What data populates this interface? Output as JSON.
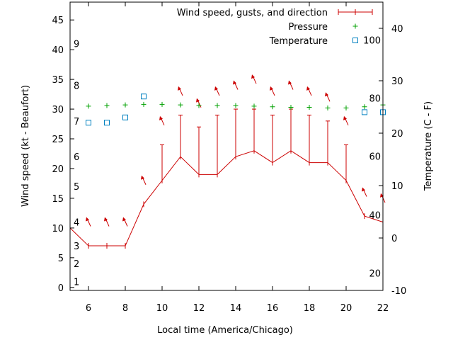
{
  "chart_data": {
    "type": "line",
    "xlabel": "Local time (America/Chicago)",
    "ylabel": "Wind speed (kt - Beaufort)",
    "y2label": "Temperature (C - F)",
    "xlim": [
      5,
      22
    ],
    "ylim": [
      -0.5,
      48
    ],
    "y2lim": [
      -10,
      45
    ],
    "x_ticks": [
      6,
      8,
      10,
      12,
      14,
      16,
      18,
      20,
      22
    ],
    "y_ticks": [
      0,
      5,
      10,
      15,
      20,
      25,
      30,
      35,
      40,
      45
    ],
    "y2_ticks": [
      -10,
      0,
      10,
      20,
      30,
      40
    ],
    "beaufort_labels": [
      {
        "label": "1",
        "kt": 1
      },
      {
        "label": "2",
        "kt": 4
      },
      {
        "label": "3",
        "kt": 7
      },
      {
        "label": "4",
        "kt": 11
      },
      {
        "label": "5",
        "kt": 17
      },
      {
        "label": "6",
        "kt": 22
      },
      {
        "label": "7",
        "kt": 28
      },
      {
        "label": "8",
        "kt": 34
      },
      {
        "label": "9",
        "kt": 41
      }
    ],
    "fahrenheit_labels": [
      {
        "label": "20",
        "celsius": -6.7
      },
      {
        "label": "40",
        "celsius": 4.4
      },
      {
        "label": "60",
        "celsius": 15.6
      },
      {
        "label": "80",
        "celsius": 26.7
      },
      {
        "label": "100",
        "celsius": 37.8
      }
    ],
    "legend": [
      {
        "label": "Wind speed, gusts, and direction",
        "symbol": "errorline",
        "color": "#cc0000"
      },
      {
        "label": "Pressure",
        "symbol": "plus",
        "color": "#00a000"
      },
      {
        "label": "Temperature",
        "symbol": "square",
        "color": "#0080c0"
      }
    ],
    "series": [
      {
        "name": "Wind speed, gusts, and direction",
        "x": [
          5,
          6,
          7,
          8,
          9,
          10,
          11,
          12,
          13,
          14,
          15,
          16,
          17,
          18,
          19,
          20,
          21,
          22
        ],
        "speed": [
          10,
          7,
          7,
          7,
          14,
          18,
          22,
          19,
          19,
          22,
          23,
          21,
          23,
          21,
          21,
          18,
          12,
          11
        ],
        "gust": [
          null,
          null,
          null,
          null,
          null,
          24,
          29,
          27,
          29,
          30,
          30,
          29,
          30,
          29,
          28,
          24,
          null,
          null
        ]
      },
      {
        "name": "Direction arrows",
        "x": [
          6,
          7,
          8,
          9,
          10,
          11,
          12,
          13,
          14,
          15,
          16,
          17,
          18,
          19,
          20,
          21,
          22
        ],
        "y": [
          11,
          11,
          11,
          18,
          28,
          33,
          31,
          33,
          34,
          35,
          33,
          34,
          33,
          32,
          28,
          16,
          15
        ]
      },
      {
        "name": "Pressure",
        "x": [
          6,
          7,
          8,
          9,
          10,
          11,
          12,
          13,
          14,
          15,
          16,
          17,
          18,
          19,
          20,
          21,
          22
        ],
        "values": [
          30.5,
          30.6,
          30.7,
          30.8,
          30.8,
          30.7,
          30.6,
          30.6,
          30.6,
          30.5,
          30.4,
          30.3,
          30.3,
          30.2,
          30.2,
          30.4,
          30.7
        ]
      },
      {
        "name": "Temperature",
        "x": [
          6,
          7,
          8,
          9,
          21,
          22
        ],
        "values": [
          22.0,
          22.0,
          23.0,
          27.0,
          24.0,
          24.0
        ]
      }
    ]
  }
}
